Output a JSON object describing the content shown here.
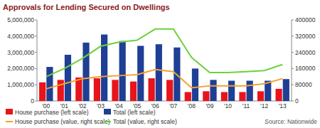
{
  "chart_data": {
    "type": "bar",
    "title": "Approvals for Lending Secured on Dwellings",
    "source": "Source: Nationwide",
    "categories": [
      "'00",
      "'01",
      "'02",
      "'03",
      "'04",
      "'05",
      "'06",
      "'07",
      "'08",
      "'09",
      "'10",
      "'11",
      "'12",
      "'13"
    ],
    "series": [
      {
        "name": "House purchase (left scale)",
        "color": "#e8141b",
        "type": "bar",
        "values": [
          1150000,
          1300000,
          1450000,
          1400000,
          1300000,
          1200000,
          1400000,
          1300000,
          550000,
          600000,
          550000,
          550000,
          600000,
          750000
        ]
      },
      {
        "name": "Total (left scale)",
        "color": "#1f3f95",
        "type": "bar",
        "values": [
          2100000,
          2850000,
          3600000,
          4100000,
          3700000,
          3400000,
          3500000,
          3300000,
          2000000,
          1300000,
          1250000,
          1250000,
          1250000,
          1350000
        ]
      },
      {
        "name": "House purchase (value, right scale)",
        "color": "#f5a031",
        "type": "line",
        "axis": "y2",
        "values": [
          60000,
          85000,
          110000,
          120000,
          125000,
          130000,
          155000,
          145000,
          65000,
          75000,
          75000,
          75000,
          85000,
          110000
        ]
      },
      {
        "name": "Total (value, right scale)",
        "color": "#6cd23c",
        "type": "line",
        "axis": "y2",
        "values": [
          120000,
          160000,
          210000,
          270000,
          290000,
          300000,
          355000,
          355000,
          215000,
          140000,
          140000,
          145000,
          150000,
          180000
        ]
      }
    ],
    "ylim": [
      0,
      5000000
    ],
    "yticks": [
      0,
      {
        "value": 1000000,
        "label": "1,000,000"
      },
      {
        "value": 2000000,
        "label": "2,000,000"
      },
      {
        "value": 3000000,
        "label": "3,000,000"
      },
      {
        "value": 4000000,
        "label": "4,000,000"
      },
      {
        "value": 5000000,
        "label": "5,000,000"
      }
    ],
    "y2lim": [
      0,
      400000
    ],
    "y2ticks": [
      0,
      80000,
      160000,
      240000,
      320000,
      400000
    ],
    "grid": false,
    "legend": "bottom"
  }
}
